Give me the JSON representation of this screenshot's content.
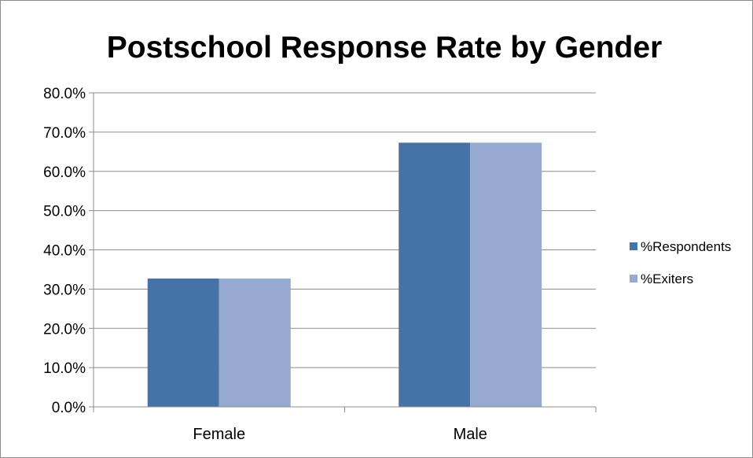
{
  "chart_data": {
    "type": "bar",
    "title": "Postschool Response Rate by Gender",
    "xlabel": "",
    "ylabel": "",
    "categories": [
      "Female",
      "Male"
    ],
    "series": [
      {
        "name": "%Respondents",
        "values": [
          32.7,
          67.3
        ],
        "color": "#4573A7"
      },
      {
        "name": "%Exiters",
        "values": [
          32.7,
          67.3
        ],
        "color": "#95A9D1"
      }
    ],
    "ylim": [
      0,
      80
    ],
    "yticks": [
      0,
      10,
      20,
      30,
      40,
      50,
      60,
      70,
      80
    ],
    "ytick_labels": [
      "0.0%",
      "10.0%",
      "20.0%",
      "30.0%",
      "40.0%",
      "50.0%",
      "60.0%",
      "70.0%",
      "80.0%"
    ],
    "grid": true,
    "legend_position": "right",
    "colors": {
      "gridline": "#8c8c8c",
      "axis": "#8c8c8c",
      "frame": "#8c8c8c"
    }
  }
}
